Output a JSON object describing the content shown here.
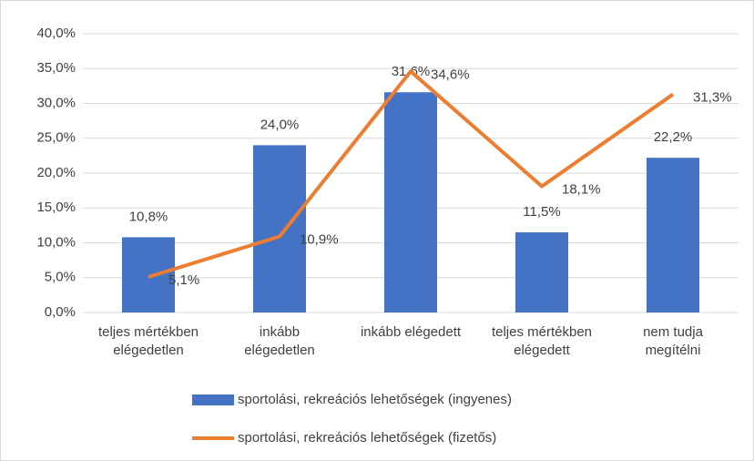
{
  "chart_data": {
    "type": "bar_line",
    "categories": [
      "teljes mértékben\nelégedetlen",
      "inkább\nelégedetlen",
      "inkább elégedett",
      "teljes mértékben\nelégedett",
      "nem tudja\nmegítélni"
    ],
    "series": [
      {
        "name": "sportolási, rekreációs lehetőségek (ingyenes)",
        "type": "bar",
        "color": "#4472c4",
        "values": [
          10.8,
          24.0,
          31.6,
          11.5,
          22.2
        ],
        "value_labels": [
          "10,8%",
          "24,0%",
          "31,6%",
          "11,5%",
          "22,2%"
        ]
      },
      {
        "name": "sportolási, rekreációs lehetőségek (fizetős)",
        "type": "line",
        "color": "#ed7d31",
        "values": [
          5.1,
          10.9,
          34.6,
          18.1,
          31.3
        ],
        "value_labels": [
          "5,1%",
          "10,9%",
          "34,6%",
          "18,1%",
          "31,3%"
        ]
      }
    ],
    "ylim": [
      0,
      40
    ],
    "yticks": [
      {
        "value": 0,
        "label": "0,0%"
      },
      {
        "value": 5,
        "label": "5,0%"
      },
      {
        "value": 10,
        "label": "10,0%"
      },
      {
        "value": 15,
        "label": "15,0%"
      },
      {
        "value": 20,
        "label": "20,0%"
      },
      {
        "value": 25,
        "label": "25,0%"
      },
      {
        "value": 30,
        "label": "30,0%"
      },
      {
        "value": 35,
        "label": "35,0%"
      },
      {
        "value": 40,
        "label": "40,0%"
      }
    ],
    "grid": true,
    "legend": "bottom"
  }
}
